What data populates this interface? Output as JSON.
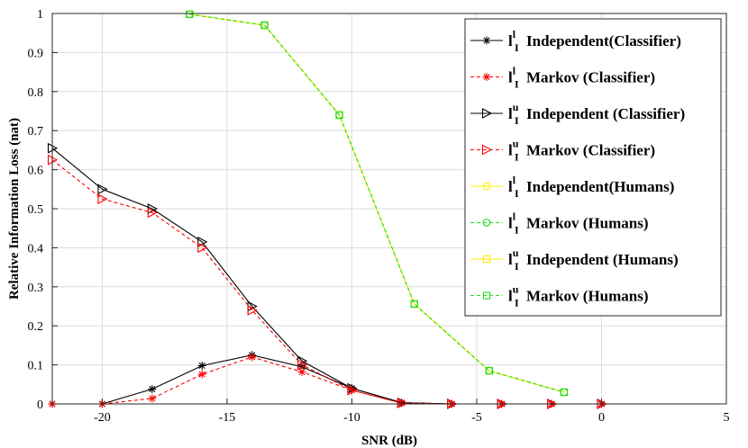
{
  "chart_data": {
    "type": "line",
    "xlabel": "SNR (dB)",
    "ylabel": "Relative Information Loss (nat)",
    "xlim": [
      -22,
      5
    ],
    "ylim": [
      0,
      1
    ],
    "xticks": [
      -20,
      -15,
      -10,
      -5,
      0,
      5
    ],
    "yticks": [
      0,
      0.1,
      0.2,
      0.3,
      0.4,
      0.5,
      0.6,
      0.7,
      0.8,
      0.9,
      1
    ],
    "ytick_labels": [
      "0",
      "0.1",
      "0.2",
      "0.3",
      "0.4",
      "0.5",
      "0.6",
      "0.7",
      "0.8",
      "0.9",
      "1"
    ],
    "grid": true,
    "legend_position": "top-right",
    "series": [
      {
        "legend": {
          "sym": "l",
          "sup": "l",
          "sub": "I",
          "text": "Independent(Classifier)"
        },
        "color": "#000000",
        "dash": "solid",
        "marker": "asterisk",
        "x": [
          -22,
          -20,
          -18,
          -16,
          -14,
          -12,
          -10,
          -8,
          -6,
          -4,
          -2,
          0
        ],
        "y": [
          0,
          0,
          0.038,
          0.098,
          0.125,
          0.095,
          0.04,
          0.003,
          0,
          0,
          0,
          0
        ]
      },
      {
        "legend": {
          "sym": "l",
          "sup": "l",
          "sub": "I",
          "text": "Markov (Classifier)"
        },
        "color": "#ff0000",
        "dash": "dashed",
        "marker": "asterisk",
        "x": [
          -22,
          -20,
          -18,
          -16,
          -14,
          -12,
          -10,
          -8,
          -6,
          -4,
          -2,
          0
        ],
        "y": [
          0,
          0,
          0.014,
          0.076,
          0.12,
          0.082,
          0.035,
          0.002,
          0,
          0,
          0,
          0
        ]
      },
      {
        "legend": {
          "sym": "l",
          "sup": "u",
          "sub": "I",
          "text": "Independent (Classifier)"
        },
        "color": "#000000",
        "dash": "solid",
        "marker": "triangle-right",
        "x": [
          -22,
          -20,
          -18,
          -16,
          -14,
          -12,
          -10,
          -8,
          -6,
          -4,
          -2,
          0
        ],
        "y": [
          0.655,
          0.55,
          0.5,
          0.415,
          0.25,
          0.11,
          0.04,
          0.003,
          0,
          0,
          0,
          0
        ]
      },
      {
        "legend": {
          "sym": "l",
          "sup": "u",
          "sub": "I",
          "text": "Markov (Classifier)"
        },
        "color": "#ff0000",
        "dash": "dashed",
        "marker": "triangle-right",
        "x": [
          -22,
          -20,
          -18,
          -16,
          -14,
          -12,
          -10,
          -8,
          -6,
          -4,
          -2,
          0
        ],
        "y": [
          0.625,
          0.525,
          0.49,
          0.4,
          0.24,
          0.1,
          0.035,
          0.002,
          0,
          0,
          0,
          0
        ]
      },
      {
        "legend": {
          "sym": "l",
          "sup": "l",
          "sub": "I",
          "text": "Independent(Humans)"
        },
        "color": "#ffee00",
        "dash": "solid",
        "marker": "circle",
        "x": [
          -16.5,
          -13.5,
          -10.5,
          -7.5,
          -4.5,
          -1.5
        ],
        "y": [
          0.998,
          0.97,
          0.74,
          0.256,
          0.085,
          0.03
        ]
      },
      {
        "legend": {
          "sym": "l",
          "sup": "l",
          "sub": "I",
          "text": "Markov (Humans)"
        },
        "color": "#22dd22",
        "dash": "dashed",
        "marker": "circle",
        "x": [
          -16.5,
          -13.5,
          -10.5,
          -7.5,
          -4.5,
          -1.5
        ],
        "y": [
          0.998,
          0.97,
          0.74,
          0.256,
          0.085,
          0.03
        ]
      },
      {
        "legend": {
          "sym": "l",
          "sup": "u",
          "sub": "I",
          "text": "Independent (Humans)"
        },
        "color": "#ffee00",
        "dash": "solid",
        "marker": "square",
        "x": [
          -16.5,
          -13.5,
          -10.5,
          -7.5,
          -4.5,
          -1.5
        ],
        "y": [
          0.998,
          0.97,
          0.74,
          0.256,
          0.085,
          0.03
        ]
      },
      {
        "legend": {
          "sym": "l",
          "sup": "u",
          "sub": "I",
          "text": "Markov (Humans)"
        },
        "color": "#22dd22",
        "dash": "dashed",
        "marker": "square",
        "x": [
          -16.5,
          -13.5,
          -10.5,
          -7.5,
          -4.5,
          -1.5
        ],
        "y": [
          0.998,
          0.97,
          0.74,
          0.256,
          0.085,
          0.03
        ]
      }
    ]
  }
}
